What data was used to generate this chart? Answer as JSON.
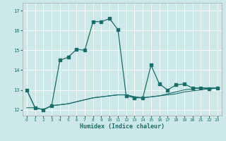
{
  "xlabel": "Humidex (Indice chaleur)",
  "background_color": "#cce8e8",
  "line_color": "#1a6e6a",
  "xlim": [
    -0.5,
    23.5
  ],
  "ylim": [
    11.7,
    17.4
  ],
  "yticks": [
    12,
    13,
    14,
    15,
    16,
    17
  ],
  "xticks": [
    0,
    1,
    2,
    3,
    4,
    5,
    6,
    7,
    8,
    9,
    10,
    11,
    12,
    13,
    14,
    15,
    16,
    17,
    18,
    19,
    20,
    21,
    22,
    23
  ],
  "main_y": [
    13.0,
    12.1,
    12.0,
    12.2,
    14.5,
    14.65,
    15.05,
    15.0,
    16.45,
    16.45,
    16.6,
    16.05,
    12.7,
    12.6,
    12.6,
    14.25,
    13.3,
    13.0,
    13.25,
    13.3,
    13.1,
    13.1,
    13.05,
    13.1
  ],
  "low1_y": [
    13.0,
    12.1,
    12.0,
    12.2,
    12.25,
    12.3,
    12.4,
    12.5,
    12.6,
    12.65,
    12.7,
    12.75,
    12.75,
    12.65,
    12.6,
    12.65,
    12.7,
    12.8,
    12.9,
    13.0,
    13.05,
    13.1,
    13.1,
    13.1
  ],
  "low2_y": [
    12.1,
    12.1,
    12.0,
    12.2,
    12.25,
    12.3,
    12.4,
    12.5,
    12.6,
    12.65,
    12.7,
    12.75,
    12.75,
    12.65,
    12.6,
    12.65,
    12.7,
    12.75,
    12.8,
    12.9,
    12.95,
    13.0,
    13.05,
    13.1
  ]
}
